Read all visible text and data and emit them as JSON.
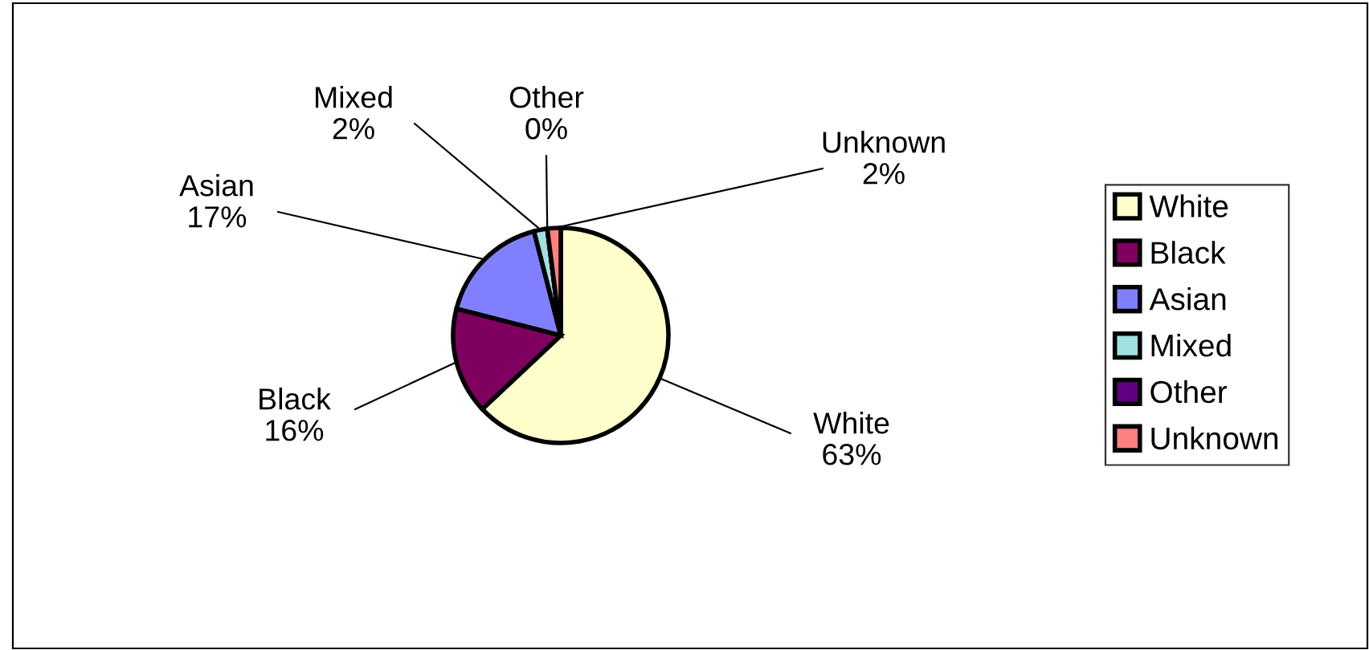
{
  "chart_data": {
    "type": "pie",
    "categories": [
      "White",
      "Black",
      "Asian",
      "Mixed",
      "Other",
      "Unknown"
    ],
    "values": [
      63,
      16,
      17,
      2,
      0,
      2
    ],
    "value_labels": [
      "63%",
      "16%",
      "17%",
      "2%",
      "0%",
      "2%"
    ],
    "colors": [
      "#ffffcc",
      "#800060",
      "#8080ff",
      "#a0e0e0",
      "#600080",
      "#ff8080"
    ],
    "legend": "right"
  }
}
